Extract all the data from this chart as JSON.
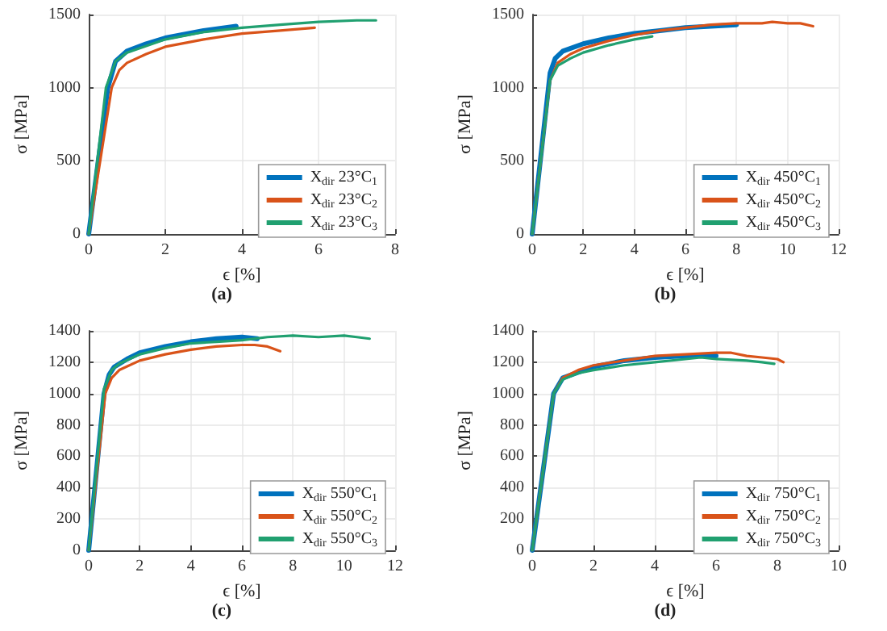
{
  "chart_data": [
    {
      "type": "line",
      "title": "(a)",
      "xlabel": "ϵ [%]",
      "ylabel": "σ [MPa]",
      "xlim": [
        0,
        8
      ],
      "xticks": [
        0,
        2,
        4,
        6,
        8
      ],
      "ylim": [
        0,
        1500
      ],
      "yticks": [
        0,
        500,
        1000,
        1500
      ],
      "grid": true,
      "legend": "bottom right",
      "series": [
        {
          "name": "X$_{dir}$ 23°C$_{1}$",
          "color": "#0072bd",
          "x": [
            0,
            0.5,
            0.7,
            1,
            1.5,
            2,
            3,
            3.85
          ],
          "values": [
            0,
            1000,
            1180,
            1250,
            1300,
            1340,
            1390,
            1420
          ]
        },
        {
          "name": "X$_{dir}$ 23°C$_{2}$",
          "color": "#d95319",
          "x": [
            0,
            0.6,
            0.8,
            1,
            1.5,
            2,
            3,
            4,
            5,
            5.9
          ],
          "values": [
            0,
            1000,
            1120,
            1170,
            1230,
            1280,
            1330,
            1370,
            1390,
            1410
          ]
        },
        {
          "name": "X$_{dir}$ 23°C$_{3}$",
          "color": "#20a070",
          "x": [
            0,
            0.45,
            0.7,
            1,
            2,
            3,
            4,
            5,
            6,
            7,
            7.5
          ],
          "values": [
            0,
            1000,
            1180,
            1240,
            1330,
            1380,
            1410,
            1430,
            1450,
            1460,
            1460
          ]
        }
      ]
    },
    {
      "type": "line",
      "title": "(b)",
      "xlabel": "ϵ [%]",
      "ylabel": "σ [MPa]",
      "xlim": [
        0,
        12
      ],
      "xticks": [
        0,
        2,
        4,
        6,
        8,
        10,
        12
      ],
      "ylim": [
        0,
        1500
      ],
      "yticks": [
        0,
        500,
        1000,
        1500
      ],
      "grid": true,
      "legend": "bottom right",
      "series": [
        {
          "name": "X$_{dir}$ 450°C$_{1}$",
          "color": "#0072bd",
          "x": [
            0,
            0.7,
            0.9,
            1.2,
            2,
            3,
            4,
            5,
            6,
            7,
            8
          ],
          "values": [
            0,
            1100,
            1200,
            1250,
            1300,
            1340,
            1370,
            1390,
            1410,
            1420,
            1430
          ]
        },
        {
          "name": "X$_{dir}$ 450°C$_{2}$",
          "color": "#d95319",
          "x": [
            0,
            0.7,
            1,
            1.5,
            2,
            3,
            4,
            5,
            6,
            7,
            8,
            9,
            9.4,
            10,
            10.5,
            11
          ],
          "values": [
            0,
            1050,
            1170,
            1230,
            1270,
            1320,
            1360,
            1390,
            1410,
            1430,
            1440,
            1440,
            1450,
            1440,
            1440,
            1420
          ]
        },
        {
          "name": "X$_{dir}$ 450°C$_{3}$",
          "color": "#20a070",
          "x": [
            0,
            0.7,
            1,
            1.5,
            2,
            3,
            4,
            4.7
          ],
          "values": [
            0,
            1050,
            1150,
            1200,
            1240,
            1290,
            1330,
            1350
          ]
        }
      ]
    },
    {
      "type": "line",
      "title": "(c)",
      "xlabel": "ϵ [%]",
      "ylabel": "σ [MPa]",
      "xlim": [
        0,
        12
      ],
      "xticks": [
        0,
        2,
        4,
        6,
        8,
        10,
        12
      ],
      "ylim": [
        0,
        1400
      ],
      "yticks": [
        0,
        200,
        400,
        600,
        800,
        1000,
        1200,
        1400
      ],
      "grid": true,
      "legend": "bottom right",
      "series": [
        {
          "name": "X$_{dir}$ 550°C$_{1}$",
          "color": "#0072bd",
          "x": [
            0,
            0.6,
            0.8,
            1,
            1.5,
            2,
            3,
            4,
            5,
            6,
            6.6
          ],
          "values": [
            0,
            1000,
            1120,
            1170,
            1220,
            1260,
            1300,
            1330,
            1350,
            1360,
            1350
          ]
        },
        {
          "name": "X$_{dir}$ 550°C$_{2}$",
          "color": "#d95319",
          "x": [
            0,
            0.65,
            0.9,
            1.2,
            2,
            3,
            4,
            5,
            6,
            6.5,
            7,
            7.5
          ],
          "values": [
            0,
            1000,
            1100,
            1150,
            1210,
            1250,
            1280,
            1300,
            1310,
            1310,
            1300,
            1270
          ]
        },
        {
          "name": "X$_{dir}$ 550°C$_{3}$",
          "color": "#20a070",
          "x": [
            0,
            0.6,
            0.9,
            1.2,
            2,
            3,
            4,
            5,
            6,
            7,
            8,
            9,
            10,
            10.5,
            11
          ],
          "values": [
            0,
            1030,
            1150,
            1190,
            1250,
            1290,
            1320,
            1330,
            1340,
            1360,
            1370,
            1360,
            1370,
            1360,
            1350
          ]
        }
      ]
    },
    {
      "type": "line",
      "title": "(d)",
      "xlabel": "ϵ [%]",
      "ylabel": "σ [MPa]",
      "xlim": [
        0,
        10
      ],
      "xticks": [
        0,
        2,
        4,
        6,
        8,
        10
      ],
      "ylim": [
        0,
        1400
      ],
      "yticks": [
        0,
        200,
        400,
        600,
        800,
        1000,
        1200,
        1400
      ],
      "grid": true,
      "legend": "bottom right",
      "series": [
        {
          "name": "X$_{dir}$ 750°C$_{1}$",
          "color": "#0072bd",
          "x": [
            0,
            0.7,
            1,
            2,
            3,
            4,
            5,
            6
          ],
          "values": [
            0,
            1000,
            1100,
            1170,
            1210,
            1230,
            1240,
            1240
          ]
        },
        {
          "name": "X$_{dir}$ 750°C$_{2}$",
          "color": "#d95319",
          "x": [
            0,
            0.7,
            1,
            1.5,
            2,
            3,
            4,
            5,
            6,
            6.5,
            7,
            7.5,
            8,
            8.2
          ],
          "values": [
            0,
            1000,
            1100,
            1150,
            1180,
            1210,
            1240,
            1250,
            1260,
            1260,
            1240,
            1230,
            1220,
            1200
          ]
        },
        {
          "name": "X$_{dir}$ 750°C$_{3}$",
          "color": "#20a070",
          "x": [
            0,
            0.7,
            1,
            1.5,
            2,
            3,
            4,
            5,
            5.5,
            6,
            7,
            7.5,
            7.9
          ],
          "values": [
            0,
            1000,
            1090,
            1130,
            1150,
            1180,
            1200,
            1220,
            1230,
            1220,
            1210,
            1200,
            1190
          ]
        }
      ]
    }
  ]
}
